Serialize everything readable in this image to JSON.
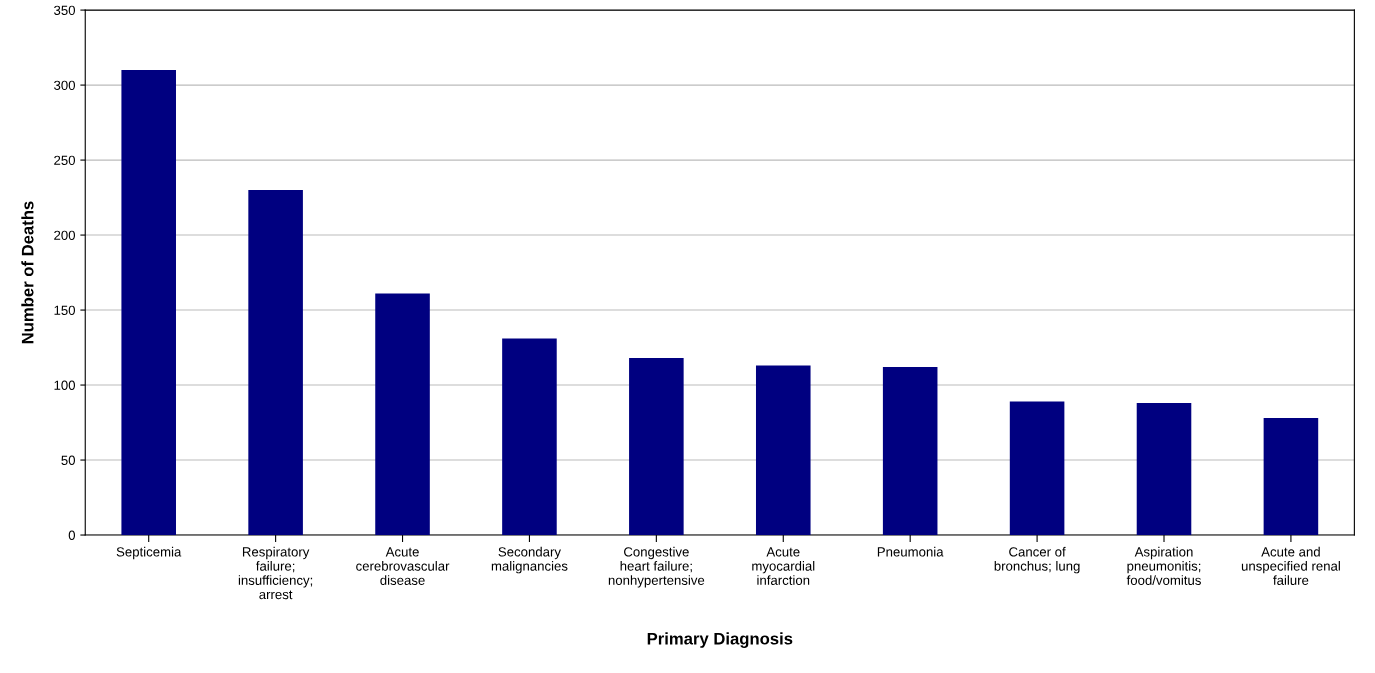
{
  "chart_data": {
    "type": "bar",
    "xlabel": "Primary Diagnosis",
    "ylabel": "Number of Deaths",
    "categories": [
      "Septicemia",
      "Respiratory\nfailure;\ninsufficiency;\narrest",
      "Acute\ncerebrovascular\ndisease",
      "Secondary\nmalignancies",
      "Congestive\nheart failure;\nnonhypertensive",
      "Acute\nmyocardial\ninfarction",
      "Pneumonia",
      "Cancer of\nbronchus; lung",
      "Aspiration\npneumonitis;\nfood/vomitus",
      "Acute and\nunspecified renal\nfailure"
    ],
    "values": [
      310,
      230,
      161,
      131,
      118,
      113,
      112,
      89,
      88,
      78
    ],
    "color": "#000080",
    "ylim": [
      0,
      350
    ],
    "yticks": [
      0,
      50,
      100,
      150,
      200,
      250,
      300,
      350
    ],
    "grid": "y",
    "legend": false
  }
}
